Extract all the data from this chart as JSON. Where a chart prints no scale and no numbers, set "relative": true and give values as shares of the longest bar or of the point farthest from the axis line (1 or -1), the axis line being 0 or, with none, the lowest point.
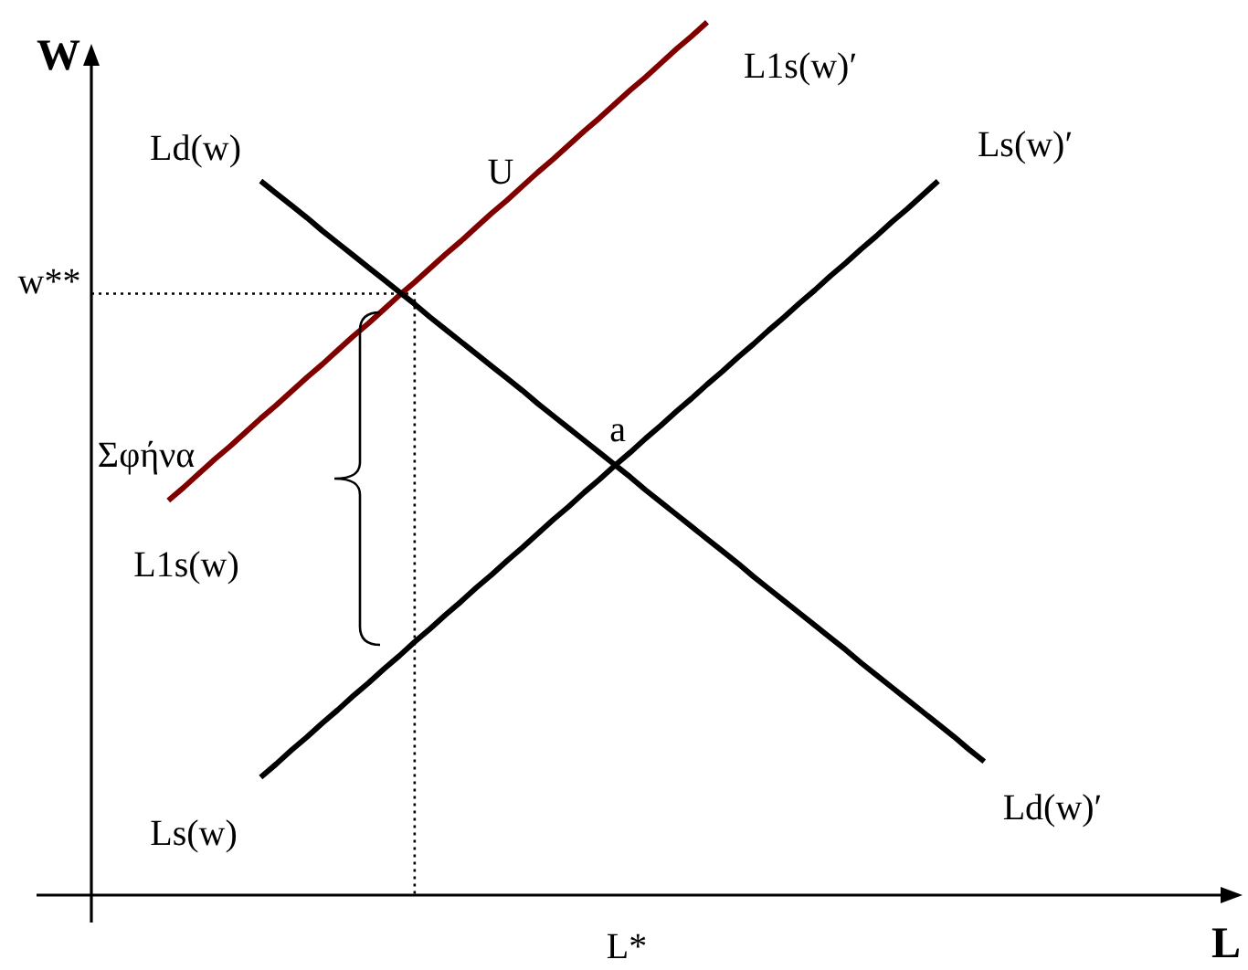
{
  "chart_data": {
    "type": "line",
    "relative": true,
    "ylabel": "W",
    "categories": [
      null,
      null,
      null,
      null,
      null,
      null,
      null,
      null,
      null,
      null,
      null,
      null,
      null,
      null,
      null,
      null,
      null,
      null,
      null,
      null,
      null,
      null,
      null,
      null,
      null,
      null,
      null,
      null,
      null,
      null,
      null,
      null,
      null,
      null,
      null,
      null,
      null,
      null,
      null,
      null,
      null,
      null,
      null,
      null,
      null,
      null,
      null,
      null,
      null,
      null,
      null,
      null,
      null,
      null,
      null,
      null,
      null,
      null,
      null
    ],
    "series": [
      {
        "color": "#000000",
        "values": [
          null,
          null,
          null,
          null,
          null,
          null,
          null,
          null,
          null,
          null,
          null,
          0.818,
          0.804,
          0.79,
          0.776,
          0.761,
          0.747,
          0.733,
          0.719,
          0.705,
          0.691,
          0.677,
          0.662,
          0.648,
          0.634,
          0.62,
          0.606,
          0.592,
          0.578,
          0.563,
          0.549,
          0.535,
          0.521,
          0.507,
          0.493,
          0.479,
          0.464,
          0.45,
          0.436,
          0.422,
          0.408,
          0.394,
          0.38,
          0.365,
          0.351,
          0.337,
          0.323,
          0.309,
          0.295,
          0.281,
          0.266,
          0.252,
          0.238,
          0.224,
          0.21,
          0.196,
          0.182,
          0.167,
          0.153
        ]
      },
      {
        "color": "#000000",
        "values": [
          null,
          null,
          null,
          null,
          null,
          null,
          null,
          null,
          null,
          null,
          null,
          0.135,
          0.15,
          0.166,
          0.181,
          0.197,
          0.212,
          0.228,
          0.243,
          0.259,
          0.274,
          0.29,
          0.305,
          0.321,
          0.336,
          0.352,
          0.367,
          0.383,
          0.398,
          0.414,
          0.43,
          0.445,
          0.461,
          0.476,
          0.492,
          0.507,
          0.523,
          0.538,
          0.554,
          0.569,
          0.585,
          0.6,
          0.616,
          0.631,
          0.647,
          0.662,
          0.678,
          0.693,
          0.709,
          0.724,
          0.74,
          0.755,
          0.771,
          0.786,
          0.802,
          0.818,
          null,
          null,
          null
        ]
      },
      {
        "color": "#800000",
        "values": [
          null,
          null,
          null,
          null,
          null,
          0.452,
          0.467,
          0.483,
          0.499,
          0.514,
          0.53,
          0.546,
          0.561,
          0.577,
          0.593,
          0.608,
          0.624,
          0.64,
          0.655,
          0.671,
          0.687,
          0.702,
          0.718,
          0.734,
          0.749,
          0.765,
          0.781,
          0.796,
          0.812,
          0.828,
          0.843,
          0.859,
          0.875,
          0.89,
          0.906,
          0.922,
          0.937,
          0.953,
          0.969,
          0.984,
          1,
          null,
          null,
          null,
          null,
          null,
          null,
          null,
          null,
          null,
          null,
          null,
          null,
          null,
          null,
          null,
          null,
          null,
          null
        ]
      },
      {
        "type": "step",
        "color": "#000000",
        "line_style": "dotted",
        "values": [
          0.689,
          0.689,
          0.689,
          0.689,
          0.689,
          0.689,
          0.689,
          0.689,
          0.689,
          0.689,
          0.689,
          0.689,
          0.689,
          0.689,
          0.689,
          0.689,
          0.689,
          0.689,
          0.689,
          0.689,
          0.689,
          0,
          null,
          null,
          null,
          null,
          null,
          null,
          null,
          null,
          null,
          null,
          null,
          null,
          null,
          null,
          null,
          null,
          null,
          null,
          null,
          null,
          null,
          null,
          null,
          null,
          null,
          null,
          null,
          null,
          null,
          null,
          null,
          null,
          null,
          null,
          null,
          null,
          null
        ]
      }
    ],
    "annotations": [
      "Ld(w)",
      "U",
      "L1s(w)′",
      "Ls(w)′",
      "w**",
      "Σφήνα",
      "a",
      "L1s(w)",
      "Ls(w)",
      "Ld(w)′",
      "L*",
      "L"
    ]
  }
}
